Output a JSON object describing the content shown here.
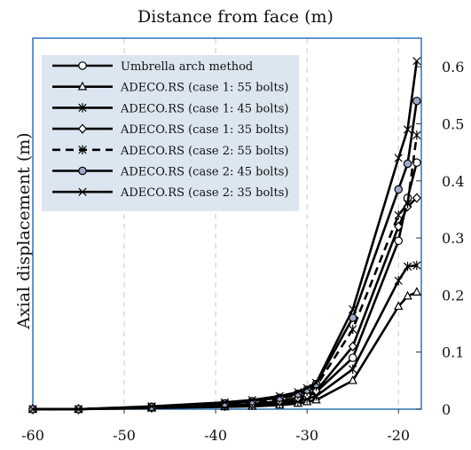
{
  "chart_data": {
    "type": "line",
    "title": "Distance from face (m)",
    "xlabel": "Distance from face (m)",
    "ylabel": "Axial displacement   (m)",
    "xlim": [
      -60,
      -17.5
    ],
    "ylim": [
      0,
      0.65
    ],
    "x_ticks": [
      -60,
      -50,
      -40,
      -30,
      -20
    ],
    "x_tick_labels": [
      "-60",
      "-50",
      "-40",
      "-30",
      "-20"
    ],
    "y_ticks": [
      0,
      0.1,
      0.2,
      0.3,
      0.4,
      0.5,
      0.6
    ],
    "y_tick_labels": [
      "0",
      "0.1",
      "0.2",
      "0.3",
      "0.4",
      "0.5",
      "0.6"
    ],
    "y_axis_side": "right",
    "grid": "vertical dashed",
    "legend_position": "top-left inside",
    "colors": {
      "line": "#000000",
      "frame": "#2e75b6",
      "legend_bg": "#dbe6f1",
      "grid": "#c9c9c9",
      "marker_fill": "#9fa8c8"
    },
    "series": [
      {
        "name": "Umbrella arch method",
        "marker": "circle",
        "dash": false,
        "x": [
          -60,
          -55,
          -47,
          -39,
          -36,
          -33,
          -31,
          -30,
          -29,
          -25,
          -20,
          -19,
          -18
        ],
        "y": [
          0,
          0,
          0.003,
          0.006,
          0.008,
          0.012,
          0.017,
          0.022,
          0.03,
          0.09,
          0.295,
          0.37,
          0.432
        ]
      },
      {
        "name": "ADECO.RS (case 1: 55 bolts)",
        "marker": "triangle",
        "dash": false,
        "x": [
          -60,
          -55,
          -47,
          -39,
          -36,
          -33,
          -31,
          -30,
          -29,
          -25,
          -20,
          -19,
          -18
        ],
        "y": [
          0,
          0,
          0.002,
          0.004,
          0.005,
          0.007,
          0.01,
          0.013,
          0.016,
          0.05,
          0.18,
          0.198,
          0.205
        ]
      },
      {
        "name": "ADECO.RS (case 1: 45 bolts)",
        "marker": "star",
        "dash": false,
        "x": [
          -60,
          -55,
          -47,
          -39,
          -36,
          -33,
          -31,
          -30,
          -29,
          -25,
          -20,
          -19,
          -18
        ],
        "y": [
          0,
          0,
          0.002,
          0.005,
          0.007,
          0.01,
          0.014,
          0.018,
          0.023,
          0.07,
          0.225,
          0.25,
          0.252
        ]
      },
      {
        "name": "ADECO.RS (case 1: 35 bolts)",
        "marker": "diamond",
        "dash": false,
        "x": [
          -60,
          -55,
          -47,
          -39,
          -36,
          -33,
          -31,
          -30,
          -29,
          -25,
          -20,
          -19,
          -18
        ],
        "y": [
          0,
          0,
          0.003,
          0.007,
          0.009,
          0.014,
          0.02,
          0.025,
          0.032,
          0.11,
          0.32,
          0.355,
          0.37
        ]
      },
      {
        "name": "ADECO.RS (case 2: 55 bolts)",
        "marker": "star",
        "dash": true,
        "x": [
          -60,
          -55,
          -47,
          -39,
          -36,
          -33,
          -31,
          -30,
          -29,
          -25,
          -20,
          -19,
          -18
        ],
        "y": [
          0,
          0,
          0.004,
          0.009,
          0.012,
          0.018,
          0.025,
          0.031,
          0.04,
          0.14,
          0.34,
          0.36,
          0.48
        ]
      },
      {
        "name": "ADECO.RS (case 2: 45 bolts)",
        "marker": "filled-circle",
        "dash": false,
        "x": [
          -60,
          -55,
          -47,
          -39,
          -36,
          -33,
          -31,
          -30,
          -29,
          -25,
          -20,
          -19,
          -18
        ],
        "y": [
          0,
          0,
          0.004,
          0.01,
          0.014,
          0.02,
          0.027,
          0.034,
          0.044,
          0.16,
          0.385,
          0.43,
          0.54
        ]
      },
      {
        "name": "ADECO.RS (case 2: 35 bolts)",
        "marker": "x",
        "dash": false,
        "x": [
          -60,
          -55,
          -47,
          -39,
          -36,
          -33,
          -31,
          -30,
          -29,
          -25,
          -20,
          -19,
          -18
        ],
        "y": [
          0,
          0,
          0.005,
          0.012,
          0.016,
          0.023,
          0.03,
          0.037,
          0.046,
          0.175,
          0.44,
          0.49,
          0.61
        ]
      }
    ]
  }
}
